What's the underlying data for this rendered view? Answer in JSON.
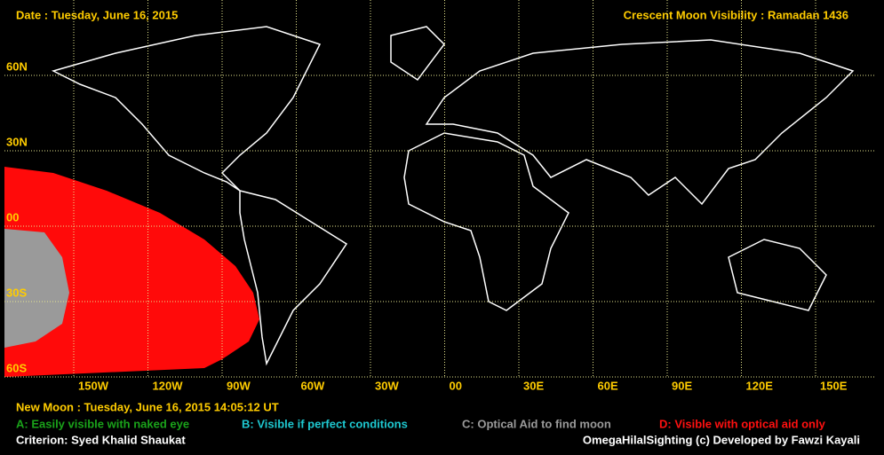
{
  "header": {
    "date": "Date : Tuesday, June 16, 2015",
    "title": "Crescent Moon Visibility : Ramadan  1436"
  },
  "map": {
    "lat_labels": [
      "60N",
      "30N",
      "00",
      "30S",
      "60S"
    ],
    "lon_labels": [
      "150W",
      "120W",
      "90W",
      "60W",
      "30W",
      "00",
      "30E",
      "60E",
      "90E",
      "120E",
      "150E"
    ]
  },
  "footer": {
    "new_moon": "New Moon : Tuesday, June 16, 2015  14:05:12  UT",
    "criterion": "Criterion: Syed Khalid Shaukat",
    "credit": "OmegaHilalSighting  (c)  Developed by Fawzi Kayali"
  },
  "legend": [
    {
      "text": "A: Easily visible with naked eye",
      "color": "#1aa31a"
    },
    {
      "text": "B: Visible if perfect conditions",
      "color": "#1ec8d0"
    },
    {
      "text": "C: Optical Aid to find moon",
      "color": "#9a9a9a"
    },
    {
      "text": "D: Visible with optical aid only",
      "color": "#ff1010"
    }
  ]
}
